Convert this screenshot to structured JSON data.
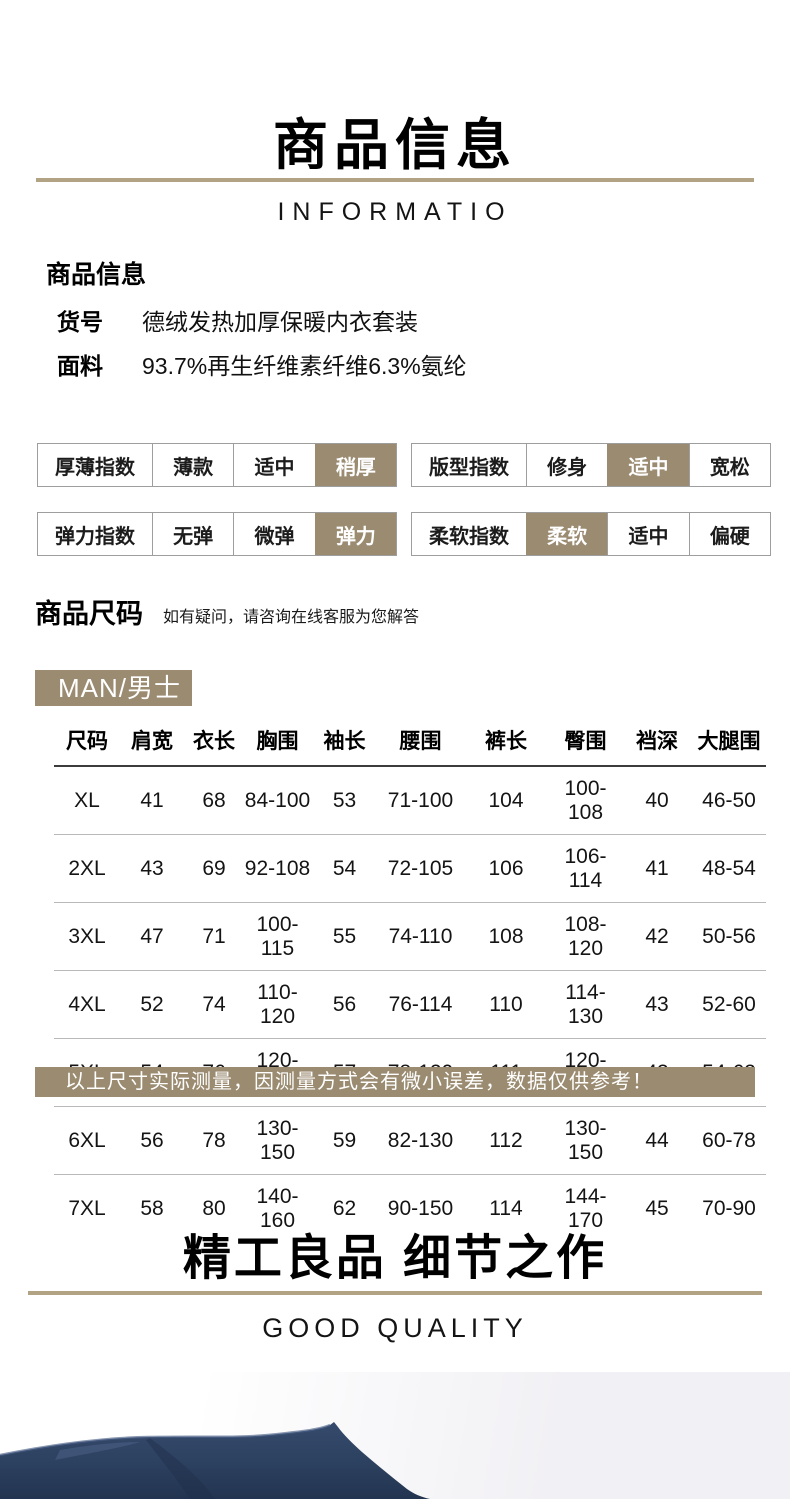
{
  "colors": {
    "accent": "#9a8b71",
    "divider_line": "#b1a384",
    "fabric_navy": "#2c405f",
    "photo_background": "#f1f0f4"
  },
  "header": {
    "title": "商品信息",
    "subtitle": "INFORMATIO"
  },
  "product_info": {
    "heading": "商品信息",
    "rows": [
      {
        "label": "货号",
        "value": "德绒发热加厚保暖内衣套装"
      },
      {
        "label": "面料",
        "value": "93.7%再生纤维素纤维6.3%氨纶"
      }
    ]
  },
  "index_tables": [
    {
      "label": "厚薄指数",
      "options": [
        "薄款",
        "适中",
        "稍厚"
      ],
      "selected": "稍厚",
      "selected_index": 2
    },
    {
      "label": "版型指数",
      "options": [
        "修身",
        "适中",
        "宽松"
      ],
      "selected": "适中",
      "selected_index": 1
    },
    {
      "label": "弹力指数",
      "options": [
        "无弹",
        "微弹",
        "弹力"
      ],
      "selected": "弹力",
      "selected_index": 2
    },
    {
      "label": "柔软指数",
      "options": [
        "柔软",
        "适中",
        "偏硬"
      ],
      "selected": "柔软",
      "selected_index": 0
    }
  ],
  "size_section": {
    "heading": "商品尺码",
    "note": "如有疑问，请咨询在线客服为您解答",
    "badge": "MAN/男士",
    "table": {
      "headers": [
        "尺码",
        "肩宽",
        "衣长",
        "胸围",
        "袖长",
        "腰围",
        "裤长",
        "臀围",
        "裆深",
        "大腿围"
      ],
      "rows": [
        [
          "XL",
          "41",
          "68",
          "84-100",
          "53",
          "71-100",
          "104",
          "100-108",
          "40",
          "46-50"
        ],
        [
          "2XL",
          "43",
          "69",
          "92-108",
          "54",
          "72-105",
          "106",
          "106-114",
          "41",
          "48-54"
        ],
        [
          "3XL",
          "47",
          "71",
          "100-115",
          "55",
          "74-110",
          "108",
          "108-120",
          "42",
          "50-56"
        ],
        [
          "4XL",
          "52",
          "74",
          "110-120",
          "56",
          "76-114",
          "110",
          "114-130",
          "43",
          "52-60"
        ],
        [
          "5XL",
          "54",
          "76",
          "120-140",
          "57",
          "78-120",
          "111",
          "120-136",
          "43",
          "54-62"
        ],
        [
          "6XL",
          "56",
          "78",
          "130-150",
          "59",
          "82-130",
          "112",
          "130-150",
          "44",
          "60-78"
        ],
        [
          "7XL",
          "58",
          "80",
          "140-160",
          "62",
          "90-150",
          "114",
          "144-170",
          "45",
          "70-90"
        ]
      ]
    },
    "disclaimer": "以上尺寸实际测量，因测量方式会有微小误差，数据仅供参考！"
  },
  "quality_section": {
    "title": "精工良品 细节之作",
    "subtitle": "GOOD QUALITY"
  }
}
